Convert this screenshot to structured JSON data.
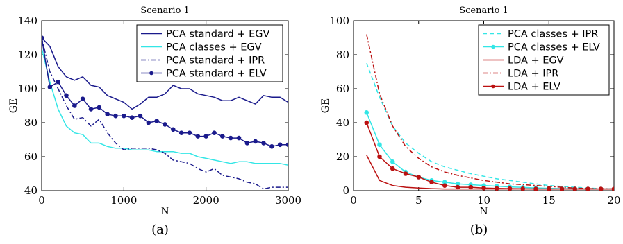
{
  "chart_data": [
    {
      "type": "line",
      "title": "Scenario 1",
      "xlabel": "N",
      "ylabel": "GE",
      "caption": "(a)",
      "xlim": [
        0,
        3000
      ],
      "ylim": [
        40,
        140
      ],
      "xticks": [
        0,
        1000,
        2000,
        3000
      ],
      "yticks": [
        40,
        60,
        80,
        100,
        120,
        140
      ],
      "grid": false,
      "legend_position": "top-right",
      "series": [
        {
          "name": "PCA standard + EGV",
          "color": "#1a1a8c",
          "style": "solid",
          "marker": false,
          "x": [
            0,
            100,
            200,
            300,
            400,
            500,
            600,
            700,
            800,
            900,
            1000,
            1100,
            1200,
            1300,
            1400,
            1500,
            1600,
            1700,
            1800,
            1900,
            2000,
            2100,
            2200,
            2300,
            2400,
            2500,
            2600,
            2700,
            2800,
            2900,
            3000
          ],
          "y": [
            130,
            125,
            113,
            107,
            105,
            107,
            102,
            101,
            96,
            94,
            92,
            88,
            91,
            95,
            95,
            97,
            102,
            100,
            100,
            97,
            96,
            95,
            93,
            93,
            95,
            93,
            91,
            96,
            95,
            95,
            92
          ]
        },
        {
          "name": "PCA classes + EGV",
          "color": "#33e6e6",
          "style": "solid",
          "marker": false,
          "x": [
            0,
            100,
            200,
            300,
            400,
            500,
            600,
            700,
            800,
            900,
            1000,
            1100,
            1200,
            1300,
            1400,
            1500,
            1600,
            1700,
            1800,
            1900,
            2000,
            2100,
            2200,
            2300,
            2400,
            2500,
            2600,
            2700,
            2800,
            2900,
            3000
          ],
          "y": [
            124,
            104,
            88,
            78,
            74,
            73,
            68,
            68,
            66,
            65,
            65,
            64,
            64,
            64,
            63,
            63,
            63,
            62,
            62,
            60,
            59,
            58,
            57,
            56,
            57,
            57,
            56,
            56,
            56,
            56,
            55
          ]
        },
        {
          "name": "PCA standard + IPR",
          "color": "#1a1a8c",
          "style": "dashdot",
          "marker": false,
          "x": [
            0,
            100,
            200,
            300,
            400,
            500,
            600,
            700,
            800,
            900,
            1000,
            1100,
            1200,
            1300,
            1400,
            1500,
            1600,
            1700,
            1800,
            1900,
            2000,
            2100,
            2200,
            2300,
            2400,
            2500,
            2600,
            2700,
            2800,
            2900,
            3000
          ],
          "y": [
            130,
            110,
            100,
            90,
            82,
            83,
            78,
            82,
            74,
            68,
            64,
            65,
            65,
            65,
            64,
            62,
            58,
            57,
            56,
            53,
            51,
            53,
            49,
            48,
            47,
            45,
            44,
            41,
            42,
            42,
            42
          ]
        },
        {
          "name": "PCA standard + ELV",
          "color": "#1a1a8c",
          "style": "solid",
          "marker": true,
          "x": [
            0,
            100,
            200,
            300,
            400,
            500,
            600,
            700,
            800,
            900,
            1000,
            1100,
            1200,
            1300,
            1400,
            1500,
            1600,
            1700,
            1800,
            1900,
            2000,
            2100,
            2200,
            2300,
            2400,
            2500,
            2600,
            2700,
            2800,
            2900,
            3000
          ],
          "y": [
            130,
            101,
            104,
            96,
            90,
            94,
            88,
            89,
            85,
            84,
            84,
            83,
            84,
            80,
            81,
            79,
            76,
            74,
            74,
            72,
            72,
            74,
            72,
            71,
            71,
            68,
            69,
            68,
            66,
            67,
            67
          ]
        }
      ]
    },
    {
      "type": "line",
      "title": "Scenario 1",
      "xlabel": "N",
      "ylabel": "GE",
      "caption": "(b)",
      "xlim": [
        0,
        20
      ],
      "ylim": [
        0,
        100
      ],
      "xticks": [
        0,
        5,
        10,
        15,
        20
      ],
      "yticks": [
        0,
        20,
        40,
        60,
        80,
        100
      ],
      "grid": false,
      "legend_position": "top-right",
      "series": [
        {
          "name": "PCA classes + IPR",
          "color": "#33e6e6",
          "style": "dashed",
          "marker": false,
          "x": [
            1,
            2,
            3,
            4,
            5,
            6,
            7,
            8,
            9,
            10,
            11,
            12,
            13,
            14,
            15,
            16,
            17,
            18,
            19,
            20
          ],
          "y": [
            75,
            55,
            38,
            28,
            22,
            17,
            14,
            12,
            10,
            8.5,
            7,
            6,
            5,
            4,
            3,
            2.5,
            2,
            1.5,
            1.2,
            1
          ]
        },
        {
          "name": "PCA classes + ELV",
          "color": "#33e6e6",
          "style": "solid",
          "marker": true,
          "x": [
            1,
            2,
            3,
            4,
            5,
            6,
            7,
            8,
            9,
            10,
            11,
            12,
            13,
            14,
            15,
            16,
            17,
            18,
            19,
            20
          ],
          "y": [
            46,
            27,
            17,
            11,
            8,
            6,
            5,
            4,
            3.5,
            3,
            2.6,
            2.2,
            1.9,
            1.6,
            1.4,
            1.2,
            1.1,
            1,
            1,
            1
          ]
        },
        {
          "name": "LDA + EGV",
          "color": "#bb1111",
          "style": "solid",
          "marker": false,
          "x": [
            1,
            2,
            3,
            4,
            5,
            6,
            7,
            8,
            9,
            10,
            11,
            12,
            13,
            14,
            15,
            16,
            17,
            18,
            19,
            20
          ],
          "y": [
            21,
            6,
            3,
            2,
            1.5,
            1.2,
            1,
            1,
            1,
            1,
            1,
            1,
            1,
            1,
            1,
            1,
            1,
            1,
            1,
            1
          ]
        },
        {
          "name": "LDA + IPR",
          "color": "#bb1111",
          "style": "dashdot",
          "marker": false,
          "x": [
            1,
            2,
            3,
            4,
            5,
            6,
            7,
            8,
            9,
            10,
            11,
            12,
            13,
            14,
            15,
            16,
            17,
            18,
            19,
            20
          ],
          "y": [
            92,
            57,
            38,
            26,
            19,
            14,
            11,
            9,
            7.5,
            6,
            5,
            4,
            3.5,
            3,
            2.5,
            2,
            1.5,
            1.2,
            1.1,
            1
          ]
        },
        {
          "name": "LDA + ELV",
          "color": "#bb1111",
          "style": "solid",
          "marker": true,
          "x": [
            1,
            2,
            3,
            4,
            5,
            6,
            7,
            8,
            9,
            10,
            11,
            12,
            13,
            14,
            15,
            16,
            17,
            18,
            19,
            20
          ],
          "y": [
            40,
            20,
            13,
            10,
            8,
            5,
            3,
            2,
            2,
            1.5,
            1.3,
            1.2,
            1.1,
            1,
            1,
            1,
            1,
            1,
            1,
            1
          ]
        }
      ]
    }
  ]
}
